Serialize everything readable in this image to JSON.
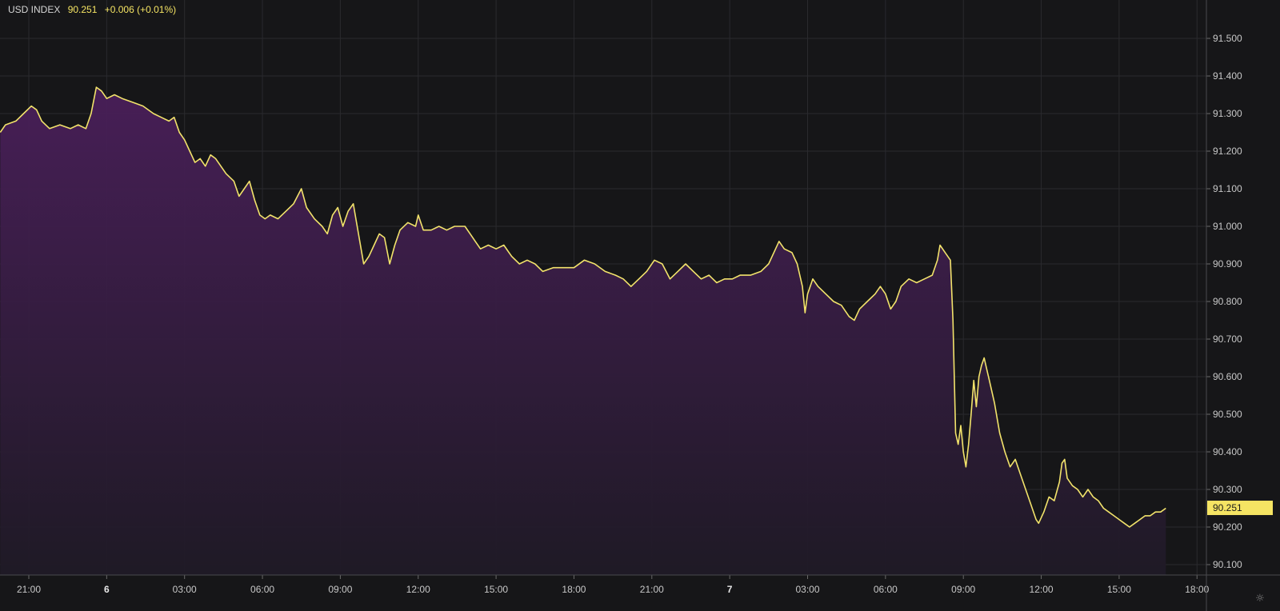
{
  "legend": {
    "name": "USD INDEX",
    "price": "90.251",
    "change": "+0.006 (+0.01%)"
  },
  "colors": {
    "background": "#161618",
    "grid": "#2a2a2e",
    "axis_text": "#c8c8c8",
    "line": "#f2e36b",
    "fill_top": "#4a1f5a",
    "fill_bottom": "#1f1a26",
    "price_tag_bg": "#f5e463",
    "price_tag_text": "#1a1a1a"
  },
  "settings_icon": "gear-icon",
  "chart_data": {
    "type": "area",
    "title": "",
    "xlabel": "",
    "ylabel": "",
    "x_unit": "hours relative to 21:00 on day 5",
    "xlim": [
      -1.1,
      43.8
    ],
    "ylim": [
      90.07,
      91.59
    ],
    "grid": true,
    "last_value": "90.251",
    "x_ticks": [
      {
        "x": 0,
        "label": "21:00"
      },
      {
        "x": 3,
        "label": "6"
      },
      {
        "x": 6,
        "label": "03:00"
      },
      {
        "x": 9,
        "label": "06:00"
      },
      {
        "x": 12,
        "label": "09:00"
      },
      {
        "x": 15,
        "label": "12:00"
      },
      {
        "x": 18,
        "label": "15:00"
      },
      {
        "x": 21,
        "label": "18:00"
      },
      {
        "x": 24,
        "label": "21:00"
      },
      {
        "x": 27,
        "label": "7"
      },
      {
        "x": 30,
        "label": "03:00"
      },
      {
        "x": 33,
        "label": "06:00"
      },
      {
        "x": 36,
        "label": "09:00"
      },
      {
        "x": 39,
        "label": "12:00"
      },
      {
        "x": 42,
        "label": "15:00"
      },
      {
        "x": 45,
        "label": "18:00"
      }
    ],
    "y_ticks": [
      {
        "y": 90.1,
        "label": "90.100"
      },
      {
        "y": 90.2,
        "label": "90.200"
      },
      {
        "y": 90.3,
        "label": "90.300"
      },
      {
        "y": 90.4,
        "label": "90.400"
      },
      {
        "y": 90.5,
        "label": "90.500"
      },
      {
        "y": 90.6,
        "label": "90.600"
      },
      {
        "y": 90.7,
        "label": "90.700"
      },
      {
        "y": 90.8,
        "label": "90.800"
      },
      {
        "y": 90.9,
        "label": "90.900"
      },
      {
        "y": 91.0,
        "label": "91.000"
      },
      {
        "y": 91.1,
        "label": "91.100"
      },
      {
        "y": 91.2,
        "label": "91.200"
      },
      {
        "y": 91.3,
        "label": "91.300"
      },
      {
        "y": 91.4,
        "label": "91.400"
      },
      {
        "y": 91.5,
        "label": "91.500"
      }
    ],
    "series": [
      {
        "values": [
          [
            -1.1,
            91.25
          ],
          [
            -0.9,
            91.27
          ],
          [
            -0.5,
            91.28
          ],
          [
            -0.2,
            91.3
          ],
          [
            0.1,
            91.32
          ],
          [
            0.3,
            91.31
          ],
          [
            0.5,
            91.28
          ],
          [
            0.8,
            91.26
          ],
          [
            1.2,
            91.27
          ],
          [
            1.6,
            91.26
          ],
          [
            1.9,
            91.27
          ],
          [
            2.2,
            91.26
          ],
          [
            2.4,
            91.3
          ],
          [
            2.6,
            91.37
          ],
          [
            2.8,
            91.36
          ],
          [
            3.0,
            91.34
          ],
          [
            3.3,
            91.35
          ],
          [
            3.6,
            91.34
          ],
          [
            4.0,
            91.33
          ],
          [
            4.4,
            91.32
          ],
          [
            4.8,
            91.3
          ],
          [
            5.1,
            91.29
          ],
          [
            5.4,
            91.28
          ],
          [
            5.6,
            91.29
          ],
          [
            5.8,
            91.25
          ],
          [
            6.0,
            91.23
          ],
          [
            6.2,
            91.2
          ],
          [
            6.4,
            91.17
          ],
          [
            6.6,
            91.18
          ],
          [
            6.8,
            91.16
          ],
          [
            7.0,
            91.19
          ],
          [
            7.2,
            91.18
          ],
          [
            7.4,
            91.16
          ],
          [
            7.6,
            91.14
          ],
          [
            7.9,
            91.12
          ],
          [
            8.1,
            91.08
          ],
          [
            8.3,
            91.1
          ],
          [
            8.5,
            91.12
          ],
          [
            8.7,
            91.07
          ],
          [
            8.9,
            91.03
          ],
          [
            9.1,
            91.02
          ],
          [
            9.3,
            91.03
          ],
          [
            9.6,
            91.02
          ],
          [
            9.9,
            91.04
          ],
          [
            10.2,
            91.06
          ],
          [
            10.5,
            91.1
          ],
          [
            10.7,
            91.05
          ],
          [
            11.0,
            91.02
          ],
          [
            11.3,
            91.0
          ],
          [
            11.5,
            90.98
          ],
          [
            11.7,
            91.03
          ],
          [
            11.9,
            91.05
          ],
          [
            12.1,
            91.0
          ],
          [
            12.3,
            91.04
          ],
          [
            12.5,
            91.06
          ],
          [
            12.7,
            90.98
          ],
          [
            12.9,
            90.9
          ],
          [
            13.1,
            90.92
          ],
          [
            13.3,
            90.95
          ],
          [
            13.5,
            90.98
          ],
          [
            13.7,
            90.97
          ],
          [
            13.9,
            90.9
          ],
          [
            14.1,
            90.95
          ],
          [
            14.3,
            90.99
          ],
          [
            14.6,
            91.01
          ],
          [
            14.9,
            91.0
          ],
          [
            15.0,
            91.03
          ],
          [
            15.2,
            90.99
          ],
          [
            15.5,
            90.99
          ],
          [
            15.8,
            91.0
          ],
          [
            16.1,
            90.99
          ],
          [
            16.4,
            91.0
          ],
          [
            16.8,
            91.0
          ],
          [
            17.0,
            90.98
          ],
          [
            17.2,
            90.96
          ],
          [
            17.4,
            90.94
          ],
          [
            17.7,
            90.95
          ],
          [
            18.0,
            90.94
          ],
          [
            18.3,
            90.95
          ],
          [
            18.6,
            90.92
          ],
          [
            18.9,
            90.9
          ],
          [
            19.2,
            90.91
          ],
          [
            19.5,
            90.9
          ],
          [
            19.8,
            90.88
          ],
          [
            20.2,
            90.89
          ],
          [
            20.6,
            90.89
          ],
          [
            21.0,
            90.89
          ],
          [
            21.4,
            90.91
          ],
          [
            21.8,
            90.9
          ],
          [
            22.2,
            90.88
          ],
          [
            22.6,
            90.87
          ],
          [
            22.9,
            90.86
          ],
          [
            23.2,
            90.84
          ],
          [
            23.5,
            90.86
          ],
          [
            23.8,
            90.88
          ],
          [
            24.1,
            90.91
          ],
          [
            24.4,
            90.9
          ],
          [
            24.7,
            90.86
          ],
          [
            25.0,
            90.88
          ],
          [
            25.3,
            90.9
          ],
          [
            25.6,
            90.88
          ],
          [
            25.9,
            90.86
          ],
          [
            26.2,
            90.87
          ],
          [
            26.5,
            90.85
          ],
          [
            26.8,
            90.86
          ],
          [
            27.1,
            90.86
          ],
          [
            27.4,
            90.87
          ],
          [
            27.8,
            90.87
          ],
          [
            28.2,
            90.88
          ],
          [
            28.5,
            90.9
          ],
          [
            28.7,
            90.93
          ],
          [
            28.9,
            90.96
          ],
          [
            29.1,
            90.94
          ],
          [
            29.4,
            90.93
          ],
          [
            29.6,
            90.9
          ],
          [
            29.8,
            90.84
          ],
          [
            29.9,
            90.77
          ],
          [
            30.0,
            90.82
          ],
          [
            30.2,
            90.86
          ],
          [
            30.4,
            90.84
          ],
          [
            30.7,
            90.82
          ],
          [
            31.0,
            90.8
          ],
          [
            31.3,
            90.79
          ],
          [
            31.6,
            90.76
          ],
          [
            31.8,
            90.75
          ],
          [
            32.0,
            90.78
          ],
          [
            32.3,
            90.8
          ],
          [
            32.6,
            90.82
          ],
          [
            32.8,
            90.84
          ],
          [
            33.0,
            90.82
          ],
          [
            33.2,
            90.78
          ],
          [
            33.4,
            90.8
          ],
          [
            33.6,
            90.84
          ],
          [
            33.9,
            90.86
          ],
          [
            34.2,
            90.85
          ],
          [
            34.5,
            90.86
          ],
          [
            34.8,
            90.87
          ],
          [
            35.0,
            90.91
          ],
          [
            35.1,
            90.95
          ],
          [
            35.3,
            90.93
          ],
          [
            35.5,
            90.91
          ],
          [
            35.6,
            90.75
          ],
          [
            35.7,
            90.45
          ],
          [
            35.8,
            90.42
          ],
          [
            35.9,
            90.47
          ],
          [
            36.0,
            90.4
          ],
          [
            36.1,
            90.36
          ],
          [
            36.2,
            90.42
          ],
          [
            36.3,
            90.5
          ],
          [
            36.4,
            90.59
          ],
          [
            36.5,
            90.52
          ],
          [
            36.6,
            90.6
          ],
          [
            36.7,
            90.63
          ],
          [
            36.8,
            90.65
          ],
          [
            36.9,
            90.62
          ],
          [
            37.0,
            90.59
          ],
          [
            37.2,
            90.53
          ],
          [
            37.4,
            90.45
          ],
          [
            37.6,
            90.4
          ],
          [
            37.8,
            90.36
          ],
          [
            38.0,
            90.38
          ],
          [
            38.2,
            90.34
          ],
          [
            38.4,
            90.3
          ],
          [
            38.6,
            90.26
          ],
          [
            38.8,
            90.22
          ],
          [
            38.9,
            90.21
          ],
          [
            39.1,
            90.24
          ],
          [
            39.3,
            90.28
          ],
          [
            39.5,
            90.27
          ],
          [
            39.7,
            90.32
          ],
          [
            39.8,
            90.37
          ],
          [
            39.9,
            90.38
          ],
          [
            40.0,
            90.33
          ],
          [
            40.2,
            90.31
          ],
          [
            40.4,
            90.3
          ],
          [
            40.6,
            90.28
          ],
          [
            40.8,
            90.3
          ],
          [
            41.0,
            90.28
          ],
          [
            41.2,
            90.27
          ],
          [
            41.4,
            90.25
          ],
          [
            41.6,
            90.24
          ],
          [
            41.8,
            90.23
          ],
          [
            42.0,
            90.22
          ],
          [
            42.2,
            90.21
          ],
          [
            42.4,
            90.2
          ],
          [
            42.6,
            90.21
          ],
          [
            42.8,
            90.22
          ],
          [
            43.0,
            90.23
          ],
          [
            43.2,
            90.23
          ],
          [
            43.4,
            90.24
          ],
          [
            43.6,
            90.24
          ],
          [
            43.8,
            90.25
          ]
        ]
      }
    ]
  }
}
